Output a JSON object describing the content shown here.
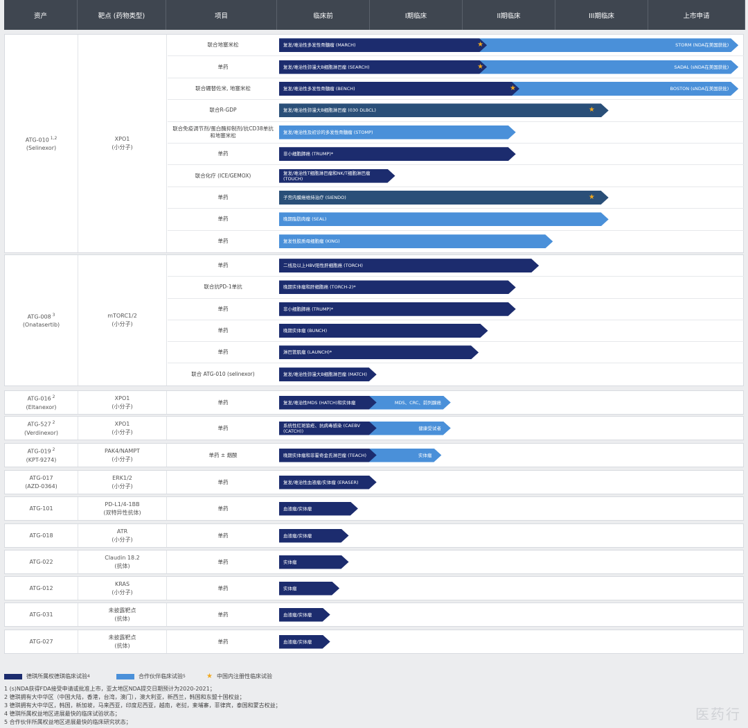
{
  "header": {
    "columns": [
      "资产",
      "靶点 (药物类型)",
      "项目",
      "临床前",
      "I期临床",
      "II期临床",
      "III期临床",
      "上市申请"
    ]
  },
  "colors": {
    "dark": "#1c2c6e",
    "light": "#4a90d9",
    "star": "#f0a81f"
  },
  "groups": [
    {
      "asset": "ATG-010",
      "asset_sup": "1,2",
      "asset_sub": "(Selinexor)",
      "target": "XPO1",
      "target_sub": "(小分子)",
      "rows": [
        {
          "item": "联合地塞米松",
          "bar": "复发/难治性多发性骨髓瘤 (MARCH)",
          "style": "dark",
          "end": 0.99,
          "ext": "STORM (NDA在美国获批)",
          "ext_start": 0.43,
          "star": 0.43
        },
        {
          "item": "单药",
          "bar": "复发/难治性弥漫大B细胞淋巴瘤 (SEARCH)",
          "style": "dark",
          "end": 0.99,
          "ext": "SADAL (sNDA在美国获批)",
          "ext_start": 0.43,
          "star": 0.43
        },
        {
          "item": "联合硼替佐米, 地塞米松",
          "bar": "复发/难治性多发性骨髓瘤 (BENCH)",
          "style": "dark",
          "end": 0.99,
          "ext": "BOSTON (sNDA在美国获批)",
          "ext_start": 0.5,
          "star": 0.5
        },
        {
          "item": "联合R-GDP",
          "bar": "复发/难治性弥漫大B细胞淋巴瘤 (030 DLBCL)",
          "style": "dark2",
          "end": 0.71,
          "star": 0.67
        },
        {
          "item": "联合免疫调节剂/蛋白酶抑制剂/抗CD38单抗和地塞米松",
          "bar": "复发/难治性及初诊的多发性骨髓瘤 (STOMP)",
          "style": "light",
          "end": 0.51
        },
        {
          "item": "单药",
          "bar": "非小细胞肺癌 (TRUMP)*",
          "style": "dark",
          "end": 0.51
        },
        {
          "item": "联合化疗 (ICE/GEMOX)",
          "bar": "复发/难治性T细胞淋巴瘤和NK/T细胞淋巴瘤 (TOUCH)",
          "style": "dark",
          "end": 0.25
        },
        {
          "item": "单药",
          "bar": "子宫内膜癌维持治疗 (SIENDO)",
          "style": "dark2",
          "end": 0.71,
          "star": 0.67
        },
        {
          "item": "单药",
          "bar": "晚期脂肪肉瘤 (SEAL)",
          "style": "light",
          "end": 0.71
        },
        {
          "item": "单药",
          "bar": "复发性胶质母细胞瘤 (KING)",
          "style": "light",
          "end": 0.59
        }
      ]
    },
    {
      "asset": "ATG-008",
      "asset_sup": "3",
      "asset_sub": "(Onatasertib)",
      "target": "mTORC1/2",
      "target_sub": "(小分子)",
      "rows": [
        {
          "item": "单药",
          "bar": "二线及以上HBV阳性肝细胞癌 (TORCH)",
          "style": "dark",
          "end": 0.56
        },
        {
          "item": "联合抗PD-1单抗",
          "bar": "晚期实体瘤和肝细胞癌 (TORCH-2)*",
          "style": "dark",
          "end": 0.51
        },
        {
          "item": "单药",
          "bar": "非小细胞肺癌 (TRUMP)*",
          "style": "dark",
          "end": 0.51
        },
        {
          "item": "单药",
          "bar": "晚期实体瘤 (BUNCH)",
          "style": "dark",
          "end": 0.45
        },
        {
          "item": "单药",
          "bar": "淋巴管肌瘤 (LAUNCH)*",
          "style": "dark",
          "end": 0.43
        },
        {
          "item": "联合 ATG-010 (selinexor)",
          "bar": "复发/难治性弥漫大B细胞淋巴瘤 (MATCH)",
          "style": "dark",
          "end": 0.21
        }
      ]
    },
    {
      "asset": "ATG-016",
      "asset_sup": "2",
      "asset_sub": "(Eltanexor)",
      "target": "XPO1",
      "target_sub": "(小分子)",
      "rows": [
        {
          "item": "单药",
          "bar": "复发/难治性MDS (HATCH)和实体瘤",
          "style": "dark",
          "end": 0.21,
          "ext": "MDS、CRC、前列腺癌",
          "ext_start": 0.2,
          "ext_end": 0.37
        }
      ]
    },
    {
      "asset": "ATG-527",
      "asset_sup": "2",
      "asset_sub": "(Verdinexor)",
      "target": "XPO1",
      "target_sub": "(小分子)",
      "rows": [
        {
          "item": "单药",
          "bar": "系统性红斑狼疮、抗病毒感染 (CAEBV (CATCH))",
          "style": "dark",
          "end": 0.21,
          "ext": "健康受试者",
          "ext_start": 0.2,
          "ext_end": 0.37
        }
      ]
    },
    {
      "asset": "ATG-019",
      "asset_sup": "2",
      "asset_sub": "(KPT-9274)",
      "target": "PAK4/NAMPT",
      "target_sub": "(小分子)",
      "rows": [
        {
          "item": "单药 ± 烟酸",
          "bar": "晚期实体瘤和非霍奇金氏淋巴瘤 (TEACH)",
          "style": "dark",
          "end": 0.21,
          "ext": "实体瘤",
          "ext_start": 0.2,
          "ext_end": 0.35
        }
      ]
    },
    {
      "asset": "ATG-017",
      "asset_sup": "",
      "asset_sub": "(AZD-0364)",
      "target": "ERK1/2",
      "target_sub": "(小分子)",
      "rows": [
        {
          "item": "单药",
          "bar": "复发/难治性血液瘤/实体瘤 (ERASER)",
          "style": "dark",
          "end": 0.21
        }
      ]
    },
    {
      "asset": "ATG-101",
      "asset_sup": "",
      "asset_sub": "",
      "target": "PD-L1/4-1BB",
      "target_sub": "(双特异性抗体)",
      "rows": [
        {
          "item": "单药",
          "bar": "血液瘤/实体瘤",
          "style": "dark",
          "end": 0.17
        }
      ]
    },
    {
      "asset": "ATG-018",
      "asset_sup": "",
      "asset_sub": "",
      "target": "ATR",
      "target_sub": "(小分子)",
      "rows": [
        {
          "item": "单药",
          "bar": "血液瘤/实体瘤",
          "style": "dark",
          "end": 0.15
        }
      ]
    },
    {
      "asset": "ATG-022",
      "asset_sup": "",
      "asset_sub": "",
      "target": "Claudin 18.2",
      "target_sub": "(抗体)",
      "rows": [
        {
          "item": "单药",
          "bar": "实体瘤",
          "style": "dark",
          "end": 0.15
        }
      ]
    },
    {
      "asset": "ATG-012",
      "asset_sup": "",
      "asset_sub": "",
      "target": "KRAS",
      "target_sub": "(小分子)",
      "rows": [
        {
          "item": "单药",
          "bar": "实体瘤",
          "style": "dark",
          "end": 0.13
        }
      ]
    },
    {
      "asset": "ATG-031",
      "asset_sup": "",
      "asset_sub": "",
      "target": "未披露靶点",
      "target_sub": "(抗体)",
      "rows": [
        {
          "item": "单药",
          "bar": "血液瘤/实体瘤",
          "style": "dark",
          "end": 0.11
        }
      ]
    },
    {
      "asset": "ATG-027",
      "asset_sup": "",
      "asset_sub": "",
      "target": "未披露靶点",
      "target_sub": "(抗体)",
      "rows": [
        {
          "item": "单药",
          "bar": "血液瘤/实体瘤",
          "style": "dark",
          "end": 0.11
        }
      ]
    }
  ],
  "legend": [
    {
      "label": "德琪所属权德琪临床试验",
      "sup": "4",
      "color": "#1c2c6e"
    },
    {
      "label": "合作伙伴临床试验",
      "sup": "5",
      "color": "#4a90d9"
    },
    {
      "label": "中国内注册性临床试验",
      "sup": "",
      "color": "#f0a81f"
    }
  ],
  "notes": [
    "1 (s)NDA获得FDA接受申请或批准上市，亚太地区NDA提交日期预计为2020-2021；",
    "2 德琪拥有大中华区（中国大陆，香港，台湾，澳门），澳大利亚，新西兰，韩国和东盟十国权益；",
    "3 德琪拥有大中华区，韩国，新加坡，马来西亚，印度尼西亚，越南，老挝，柬埔寨，菲律宾，泰国和蒙古权益；",
    "4 德琪所属权益地区进展最快的临床试验状态；",
    "5 合作伙伴所属权益地区进展最快的临床研究状态；"
  ],
  "watermark": "医药行"
}
